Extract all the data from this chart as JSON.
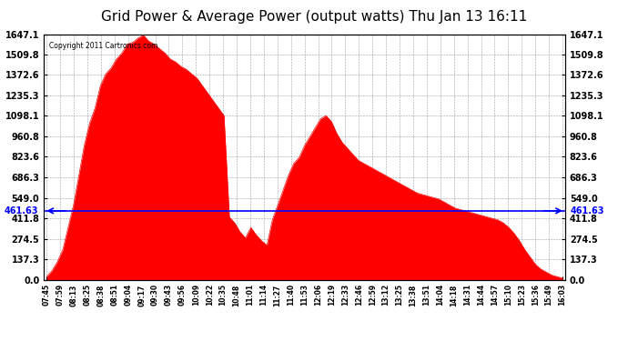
{
  "title": "Grid Power & Average Power (output watts) Thu Jan 13 16:11",
  "copyright_text": "Copyright 2011 Cartronics.com",
  "avg_line_value": 461.63,
  "avg_line_label": "461.63",
  "ymax": 1647.1,
  "ymin": 0.0,
  "yticks": [
    0.0,
    137.3,
    274.5,
    411.8,
    549.0,
    686.3,
    823.6,
    960.8,
    1098.1,
    1235.3,
    1372.6,
    1509.8,
    1647.1
  ],
  "x_labels": [
    "07:45",
    "07:59",
    "08:13",
    "08:25",
    "08:38",
    "08:51",
    "09:04",
    "09:17",
    "09:30",
    "09:43",
    "09:56",
    "10:09",
    "10:22",
    "10:35",
    "10:48",
    "11:01",
    "11:14",
    "11:27",
    "11:40",
    "11:53",
    "12:06",
    "12:19",
    "12:33",
    "12:46",
    "12:59",
    "13:12",
    "13:25",
    "13:38",
    "13:51",
    "14:04",
    "14:18",
    "14:31",
    "14:44",
    "14:57",
    "15:10",
    "15:23",
    "15:36",
    "15:49",
    "16:03"
  ],
  "bar_color": "#FF0000",
  "avg_line_color": "#0000FF",
  "background_color": "#FFFFFF",
  "grid_color": "#888888",
  "title_fontsize": 11,
  "annotation_fontsize": 7,
  "values": [
    20,
    60,
    120,
    200,
    350,
    500,
    700,
    900,
    1050,
    1150,
    1300,
    1380,
    1420,
    1480,
    1520,
    1580,
    1590,
    1620,
    1640,
    1600,
    1580,
    1550,
    1520,
    1480,
    1460,
    1430,
    1410,
    1380,
    1350,
    1300,
    1250,
    1200,
    1150,
    1100,
    420,
    380,
    320,
    280,
    350,
    300,
    260,
    230,
    400,
    500,
    600,
    700,
    780,
    820,
    900,
    960,
    1020,
    1080,
    1100,
    1060,
    980,
    920,
    880,
    840,
    800,
    780,
    760,
    740,
    720,
    700,
    680,
    660,
    640,
    620,
    600,
    580,
    570,
    560,
    550,
    540,
    520,
    500,
    480,
    470,
    460,
    450,
    440,
    430,
    420,
    410,
    400,
    380,
    350,
    310,
    260,
    200,
    150,
    100,
    70,
    50,
    30,
    20,
    10
  ]
}
